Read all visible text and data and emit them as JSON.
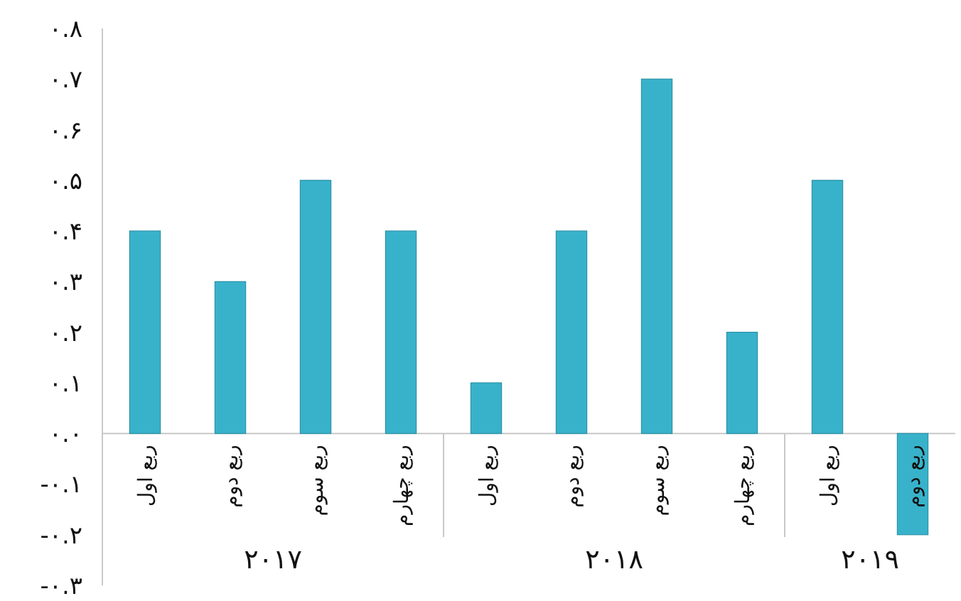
{
  "chart_data": {
    "type": "bar",
    "color": "#38b2ca",
    "categories": [
      "ربع اول",
      "ربع دوم",
      "ربع سوم",
      "ربع چهارم",
      "ربع اول",
      "ربع دوم",
      "ربع سوم",
      "ربع چهارم",
      "ربع اول",
      "ربع دوم"
    ],
    "values": [
      0.4,
      0.3,
      0.5,
      0.4,
      0.1,
      0.4,
      0.7,
      0.2,
      0.5,
      -0.2
    ],
    "ylim": [
      -0.3,
      0.8
    ],
    "yticks": [
      {
        "value": -0.3,
        "label": "-۰.۳"
      },
      {
        "value": -0.2,
        "label": "-۰.۲"
      },
      {
        "value": -0.1,
        "label": "-۰.۱"
      },
      {
        "value": 0,
        "label": "۰.۰"
      },
      {
        "value": 0.1,
        "label": "۰.۱"
      },
      {
        "value": 0.2,
        "label": "۰.۲"
      },
      {
        "value": 0.3,
        "label": "۰.۳"
      },
      {
        "value": 0.4,
        "label": "۰.۴"
      },
      {
        "value": 0.5,
        "label": "۰.۵"
      },
      {
        "value": 0.6,
        "label": "۰.۶"
      },
      {
        "value": 0.7,
        "label": "۰.۷"
      },
      {
        "value": 0.8,
        "label": "۰.۸"
      }
    ],
    "annotations": [
      "۲۰۱۷",
      "۲۰۱۸",
      "۲۰۱۹"
    ]
  }
}
